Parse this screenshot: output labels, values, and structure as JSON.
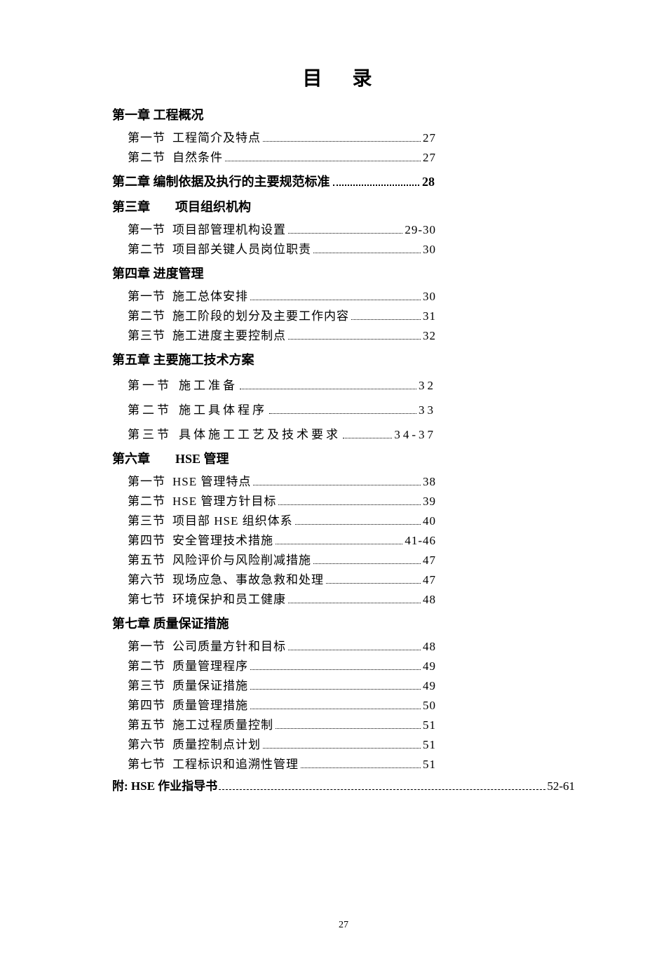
{
  "title": "目 录",
  "footer_page": "27",
  "chapters": [
    {
      "heading": "第一章 工程概况",
      "heading_page": "",
      "sections": [
        {
          "no": "第一节",
          "title": "工程简介及特点",
          "page": "27",
          "spaced": false
        },
        {
          "no": "第二节",
          "title": "自然条件",
          "page": "27",
          "spaced": false
        }
      ]
    },
    {
      "heading": "第二章 编制依据及执行的主要规范标准",
      "heading_page": "28",
      "sections": []
    },
    {
      "heading": "第三章　　项目组织机构",
      "heading_page": "",
      "sections": [
        {
          "no": "第一节",
          "title": "项目部管理机构设置",
          "page": "29-30",
          "spaced": false
        },
        {
          "no": "第二节",
          "title": "项目部关键人员岗位职责",
          "page": "30",
          "spaced": false
        }
      ]
    },
    {
      "heading": "第四章 进度管理",
      "heading_page": "",
      "tight": true,
      "sections": [
        {
          "no": "第一节",
          "title": "施工总体安排",
          "page": "30",
          "spaced": false
        },
        {
          "no": "第二节",
          "title": "施工阶段的划分及主要工作内容",
          "page": "31",
          "spaced": false
        },
        {
          "no": "第三节",
          "title": "施工进度主要控制点",
          "page": "32",
          "spaced": false
        }
      ]
    },
    {
      "heading": "第五章 主要施工技术方案",
      "heading_page": "",
      "wide": true,
      "sections": [
        {
          "no": "第一节",
          "title": "施工准备",
          "page": "32",
          "spaced": true
        },
        {
          "no": "第二节",
          "title": "施工具体程序",
          "page": "33",
          "spaced": true
        },
        {
          "no": "第三节",
          "title": "具体施工工艺及技术要求",
          "page": "34-37",
          "spaced": true
        }
      ]
    },
    {
      "heading": "第六章　　HSE 管理",
      "heading_page": "",
      "sections": [
        {
          "no": "第一节",
          "title": "HSE 管理特点",
          "page": "38",
          "spaced": false
        },
        {
          "no": "第二节",
          "title": "HSE 管理方针目标",
          "page": "39",
          "spaced": false
        },
        {
          "no": "第三节",
          "title": "项目部 HSE 组织体系",
          "page": "40",
          "spaced": false
        },
        {
          "no": "第四节",
          "title": "安全管理技术措施",
          "page": "41-46",
          "spaced": false
        },
        {
          "no": "第五节",
          "title": "风险评价与风险削减措施",
          "page": "47",
          "spaced": false
        },
        {
          "no": "第六节",
          "title": "现场应急、事故急救和处理",
          "page": "47",
          "spaced": false
        },
        {
          "no": "第七节",
          "title": "环境保护和员工健康",
          "page": "48",
          "spaced": false
        }
      ]
    },
    {
      "heading": "第七章 质量保证措施",
      "heading_page": "",
      "sections": [
        {
          "no": "第一节",
          "title": "公司质量方针和目标",
          "page": "48",
          "spaced": false
        },
        {
          "no": "第二节",
          "title": "质量管理程序",
          "page": "49",
          "spaced": false
        },
        {
          "no": "第三节",
          "title": "质量保证措施",
          "page": "49",
          "spaced": false
        },
        {
          "no": "第四节",
          "title": "质量管理措施",
          "page": "50",
          "spaced": false
        },
        {
          "no": "第五节",
          "title": "施工过程质量控制",
          "page": "51",
          "spaced": false
        },
        {
          "no": "第六节",
          "title": "质量控制点计划",
          "page": "51",
          "spaced": false
        },
        {
          "no": "第七节",
          "title": "工程标识和追溯性管理",
          "page": "51",
          "spaced": false
        }
      ]
    }
  ],
  "appendix": {
    "label": "附: HSE 作业指导书",
    "page": "52-61"
  }
}
